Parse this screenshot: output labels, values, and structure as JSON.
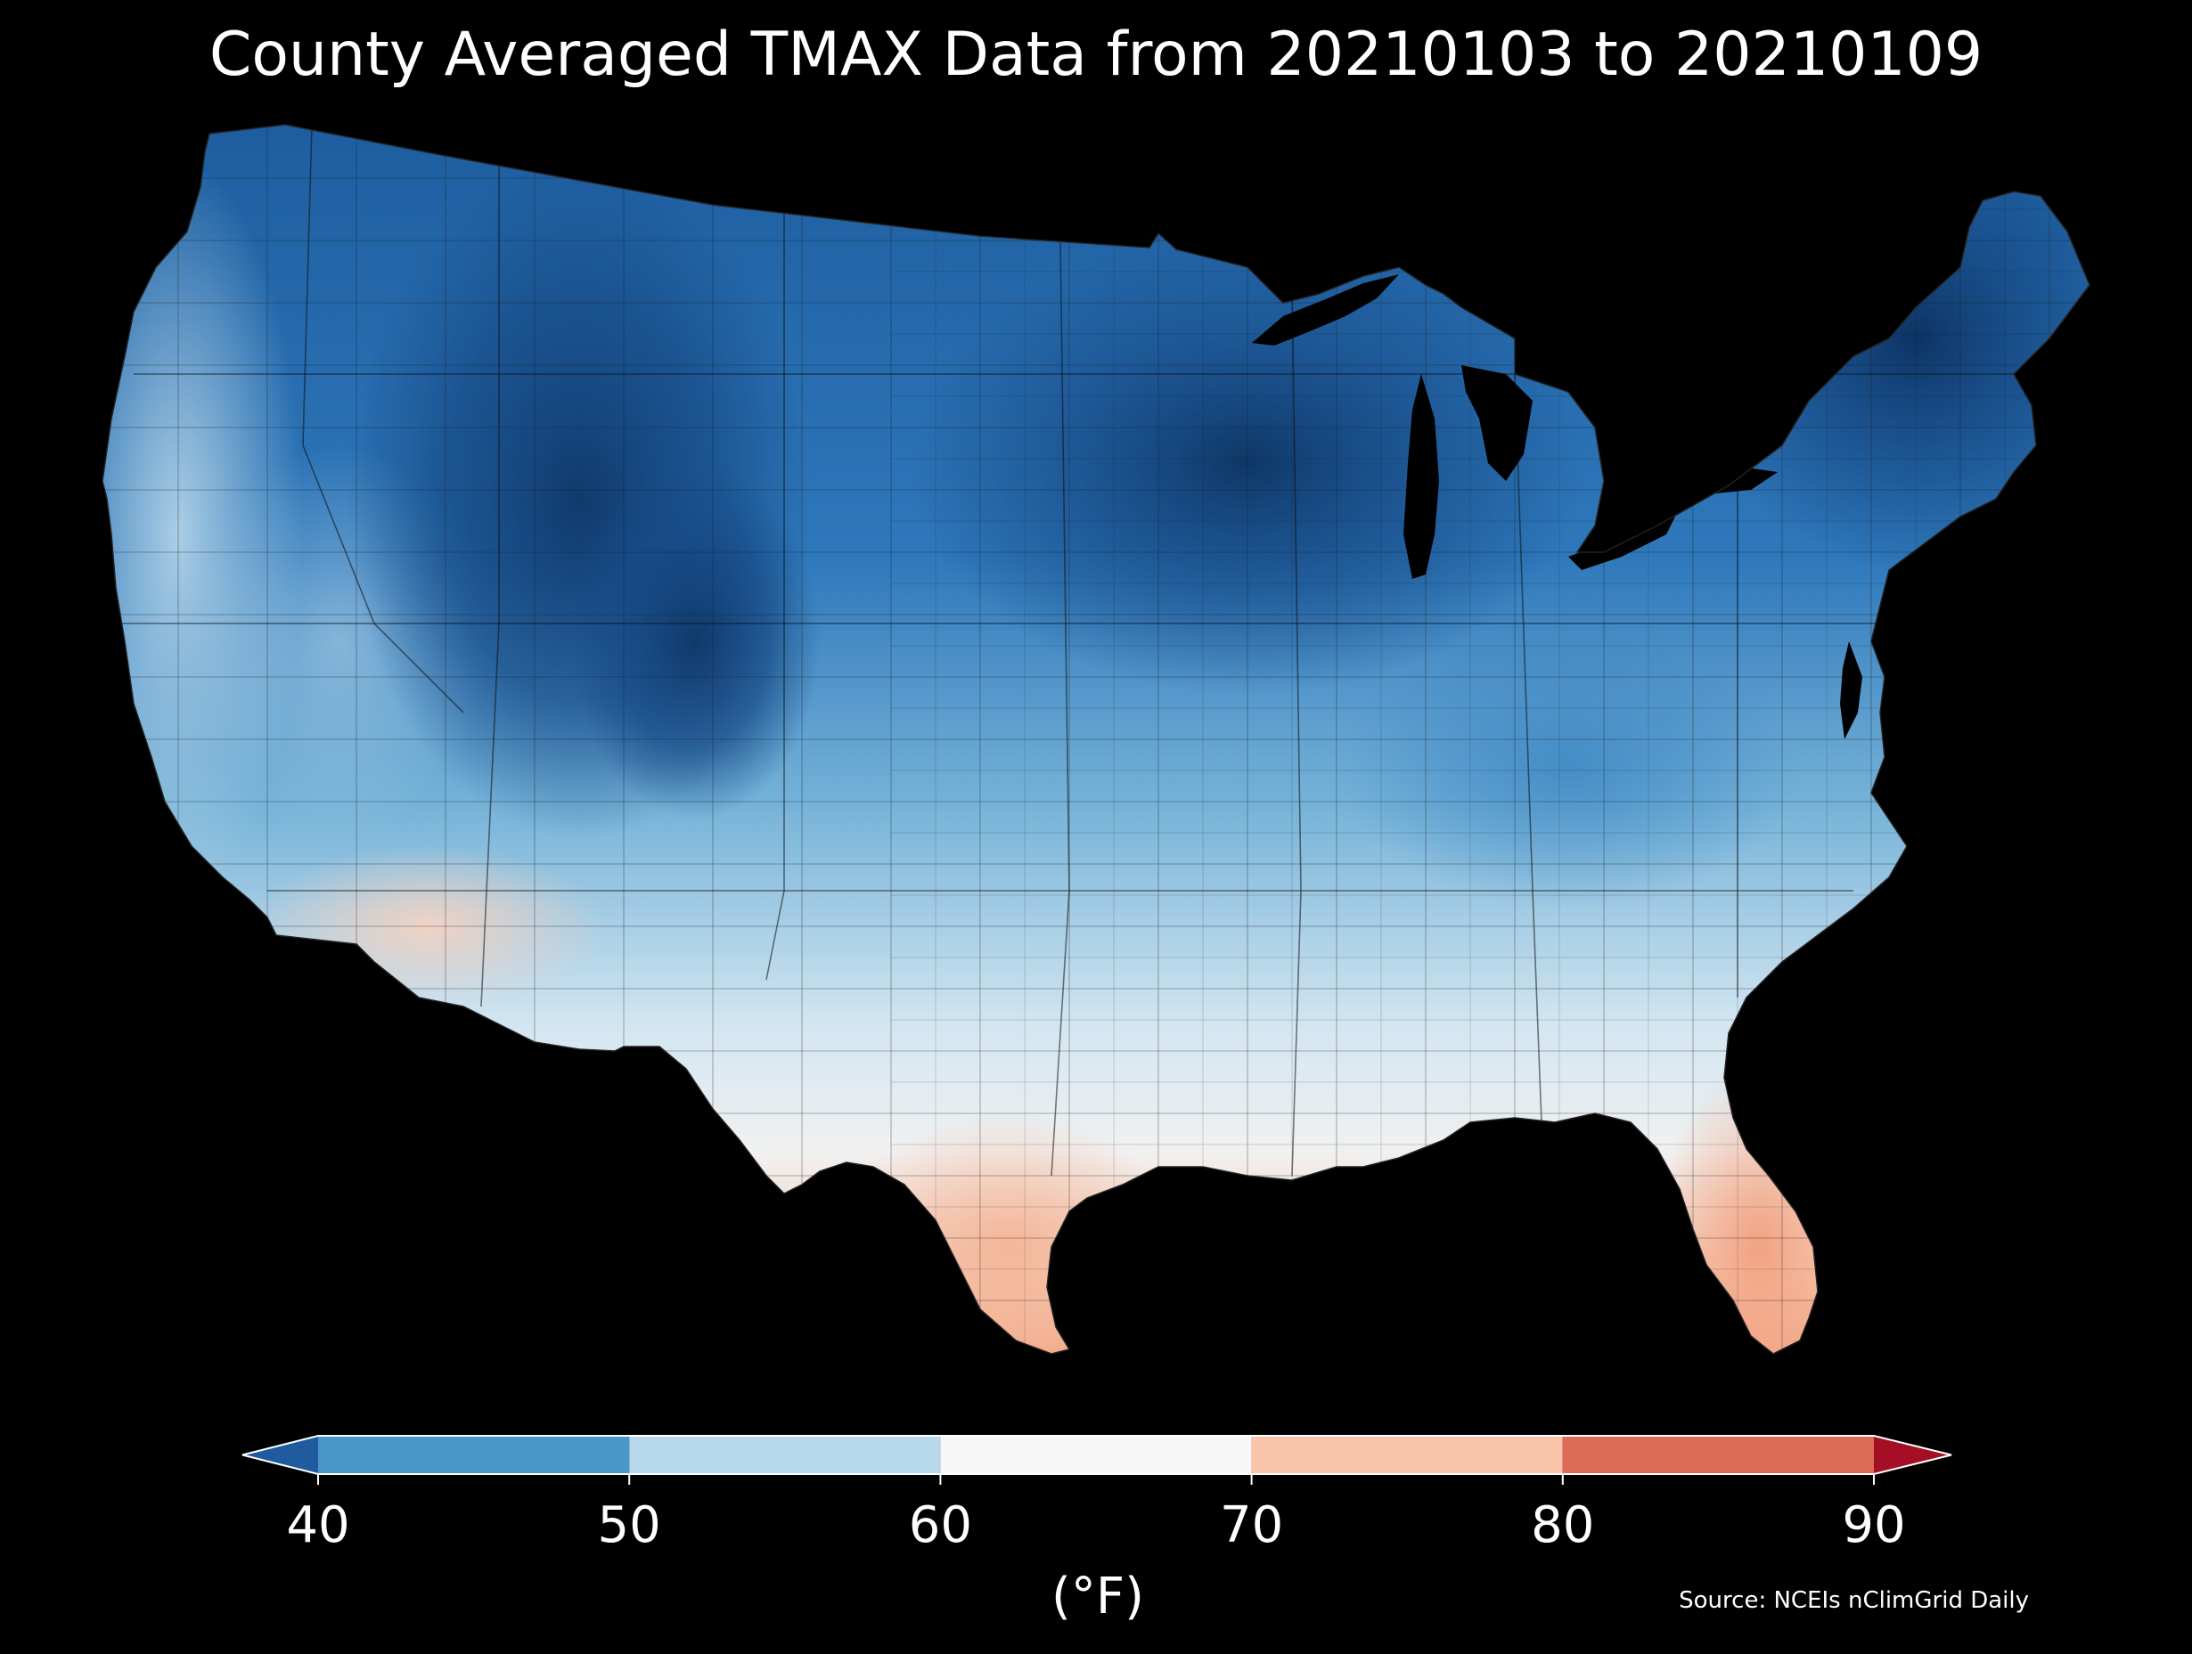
{
  "title": "County Averaged TMAX Data from 20210103 to 20210109",
  "colorbar": {
    "unit_label": "(°F)",
    "ticks": [
      "40",
      "50",
      "60",
      "70",
      "80",
      "90"
    ],
    "bins": [
      {
        "min": 40,
        "max": 50,
        "color": "#4a98c9"
      },
      {
        "min": 50,
        "max": 60,
        "color": "#b7d7ea"
      },
      {
        "min": 60,
        "max": 70,
        "color": "#f7f7f7"
      },
      {
        "min": 70,
        "max": 80,
        "color": "#f9c4a9"
      },
      {
        "min": 80,
        "max": 90,
        "color": "#de6b55"
      }
    ],
    "under_color": "#1f5b9e",
    "over_color": "#a50f26",
    "extend": "both"
  },
  "source": "Source: NCEIs nClimGrid Daily",
  "map_colors": {
    "coldest": "#0d3566",
    "cold": "#2a6fb5",
    "cool": "#5ea4d1",
    "mild": "#a9cfe5",
    "neutral": "#eef3f6",
    "warm": "#f8d6c4",
    "warmer": "#f3a98a"
  }
}
